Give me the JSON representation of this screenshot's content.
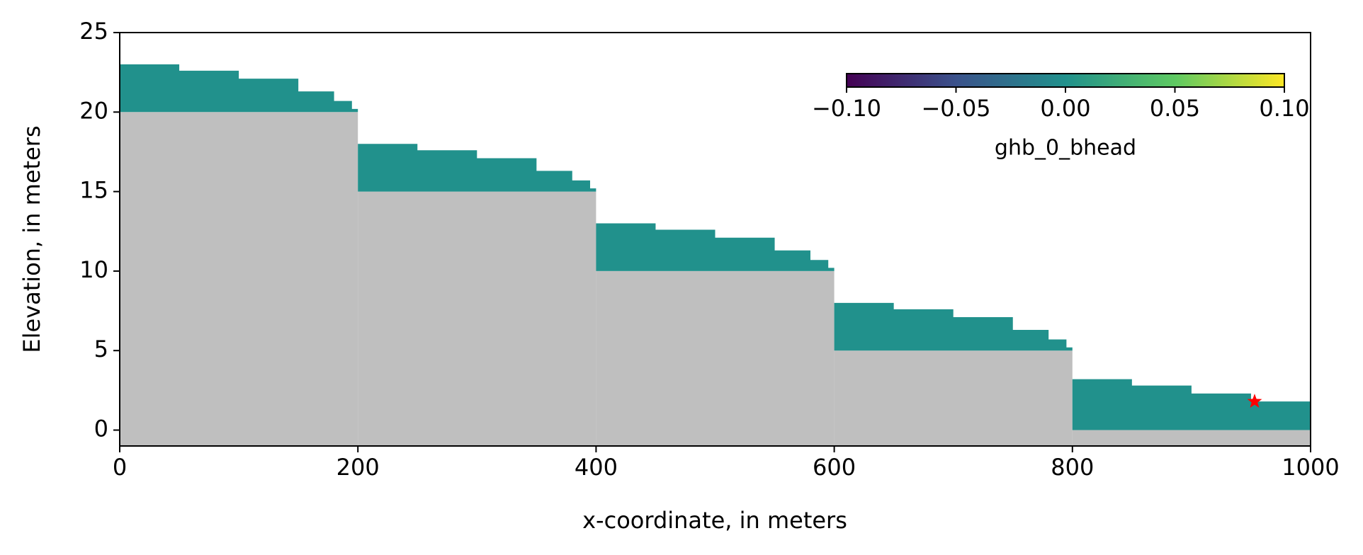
{
  "chart_data": {
    "type": "cross-section",
    "xlabel": "x-coordinate, in meters",
    "ylabel": "Elevation, in meters",
    "xlim": [
      0,
      1000
    ],
    "ylim": [
      -1,
      25
    ],
    "xticks": [
      0,
      200,
      400,
      600,
      800,
      1000
    ],
    "yticks": [
      0,
      5,
      10,
      15,
      20,
      25
    ],
    "cell_edges": [
      0,
      200,
      400,
      600,
      800,
      1000
    ],
    "cell_tops": [
      20,
      15,
      10,
      5,
      0
    ],
    "cell_color": "#bfbfbf",
    "series": [
      {
        "color": "#21918c",
        "x": [
          0,
          50,
          100,
          150,
          180,
          195,
          null,
          200,
          250,
          300,
          350,
          380,
          395,
          null,
          400,
          450,
          500,
          550,
          580,
          595,
          null,
          600,
          650,
          700,
          750,
          780,
          795,
          null,
          800,
          850,
          900,
          950,
          1000
        ],
        "values": [
          23.0,
          22.6,
          22.1,
          21.3,
          20.7,
          20.2,
          null,
          18.0,
          17.6,
          17.1,
          16.3,
          15.7,
          15.2,
          null,
          13.0,
          12.6,
          12.1,
          11.3,
          10.7,
          10.2,
          null,
          8.0,
          7.6,
          7.1,
          6.3,
          5.7,
          5.2,
          null,
          3.2,
          2.8,
          2.3,
          1.8,
          1.0
        ]
      }
    ],
    "marker": {
      "x": 953,
      "y": 1.8,
      "color": "#ff0000"
    },
    "colorbar": {
      "label": "ghb_0_bhead",
      "lim": [
        -0.1,
        0.1
      ],
      "ticks": [
        {
          "value": -0.1,
          "label": "−0.10"
        },
        {
          "value": -0.05,
          "label": "−0.05"
        },
        {
          "value": 0,
          "label": "0.00"
        },
        {
          "value": 0.05,
          "label": "0.05"
        },
        {
          "value": 0.1,
          "label": "0.10"
        }
      ]
    }
  }
}
